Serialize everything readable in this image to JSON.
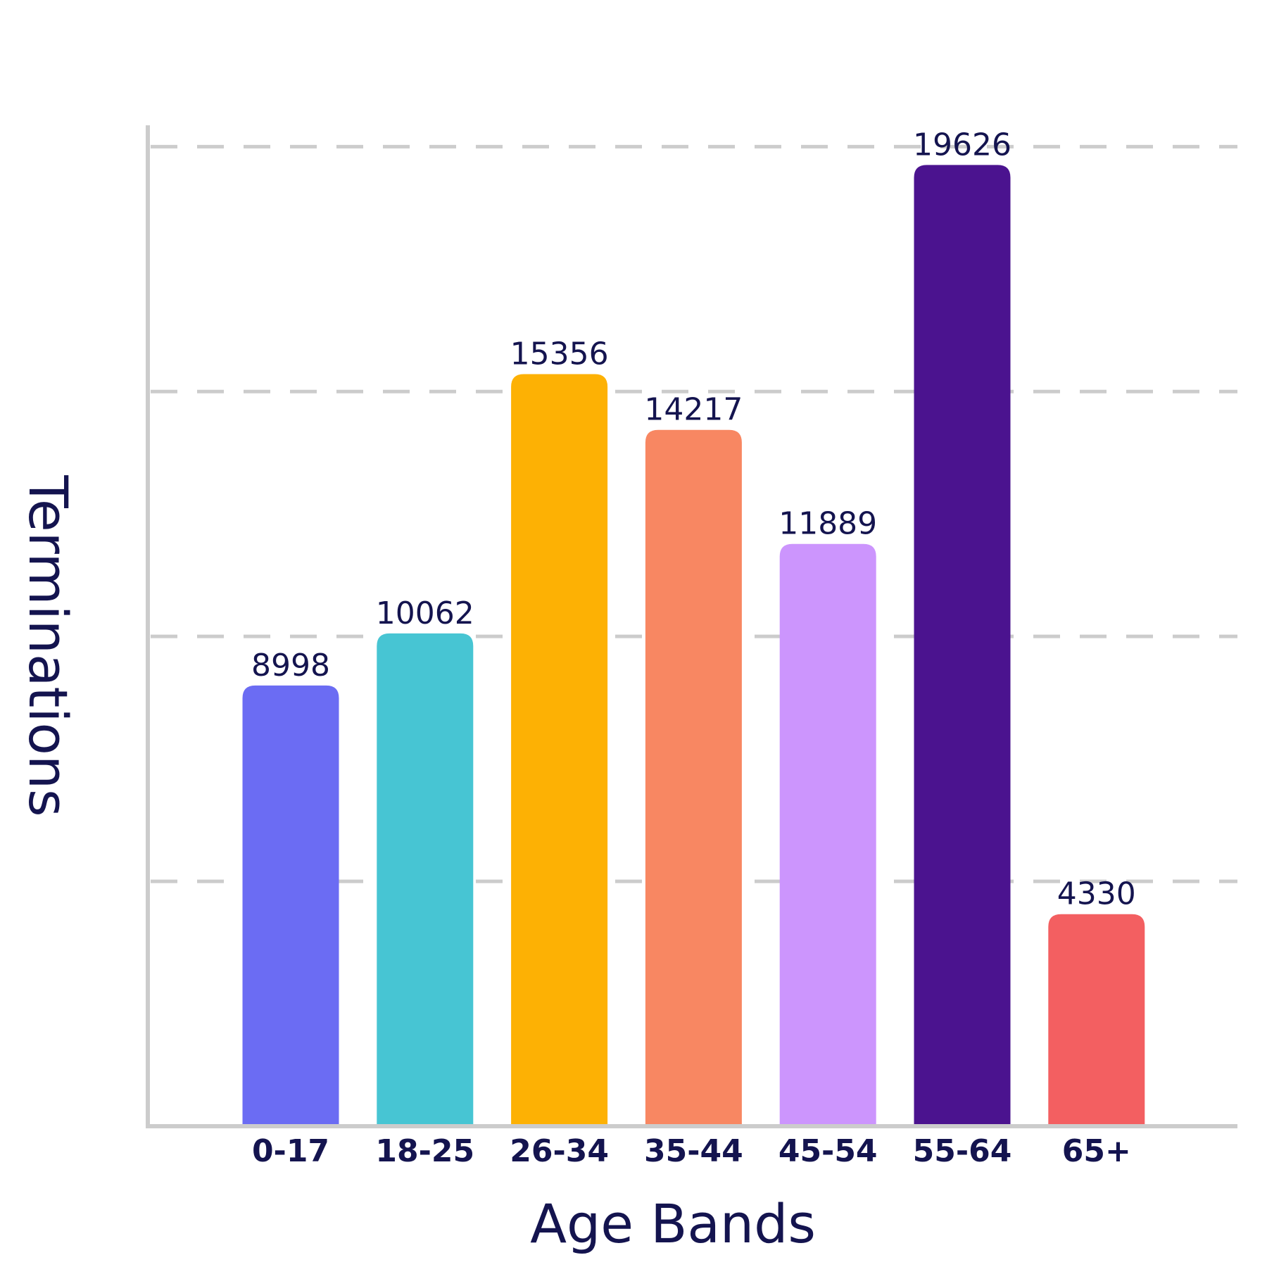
{
  "chart_data": {
    "type": "bar",
    "title": "",
    "xlabel": "Age Bands",
    "ylabel": "Terminations",
    "categories": [
      "0-17",
      "18-25",
      "26-34",
      "35-44",
      "45-54",
      "55-64",
      "65+"
    ],
    "values": [
      8998,
      10062,
      15356,
      14217,
      11889,
      19626,
      4330
    ],
    "value_labels": [
      "8998",
      "10062",
      "15356",
      "14217",
      "11889",
      "19626",
      "4330"
    ],
    "colors": [
      "#6b6cf3",
      "#47c5d3",
      "#fdb104",
      "#f88762",
      "#cc95fd",
      "#4b138f",
      "#f35f61"
    ],
    "ylim": [
      0,
      21600
    ],
    "gridlines": [
      5000,
      10000,
      15000,
      20000
    ],
    "grid": true,
    "grid_style": "dashed",
    "grid_color": "#cccccc",
    "axis_color": "#cccccc",
    "legend": "none"
  }
}
